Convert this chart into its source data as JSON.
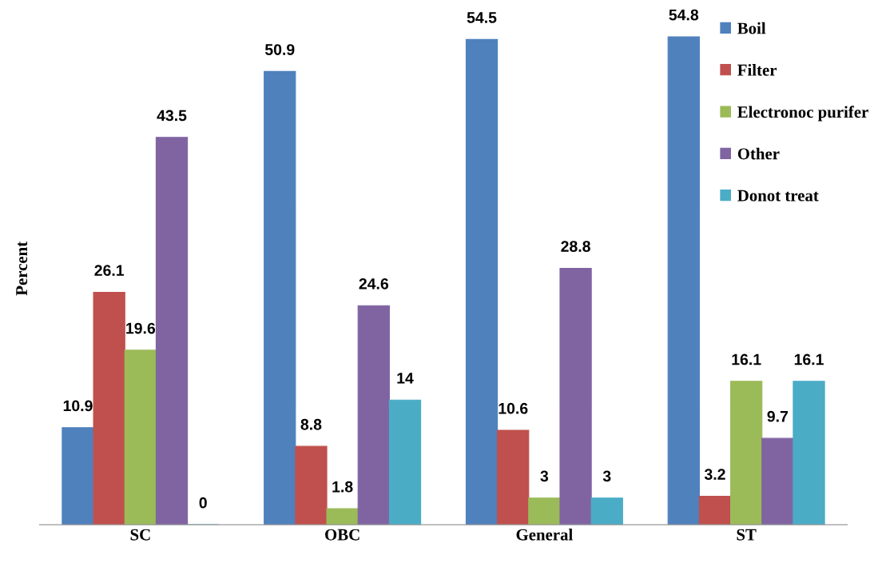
{
  "chart_data": {
    "type": "bar",
    "ylabel": "Percent",
    "categories": [
      "SC",
      "OBC",
      "General",
      "ST"
    ],
    "series": [
      {
        "name": "Boil",
        "color": "#4f81bd",
        "values": [
          10.9,
          50.9,
          54.5,
          54.8
        ]
      },
      {
        "name": "Filter",
        "color": "#c0504d",
        "values": [
          26.1,
          8.8,
          10.6,
          3.2
        ]
      },
      {
        "name": "Electronoc purifer",
        "color": "#9bbb59",
        "values": [
          19.6,
          1.8,
          3,
          16.1
        ]
      },
      {
        "name": "Other",
        "color": "#8064a2",
        "values": [
          43.5,
          24.6,
          28.8,
          9.7
        ]
      },
      {
        "name": "Donot treat",
        "color": "#4bacc6",
        "values": [
          0,
          14,
          3,
          16.1
        ]
      }
    ],
    "tick_labels": "x",
    "data_labels": true,
    "legend": "top right",
    "grid": false
  }
}
